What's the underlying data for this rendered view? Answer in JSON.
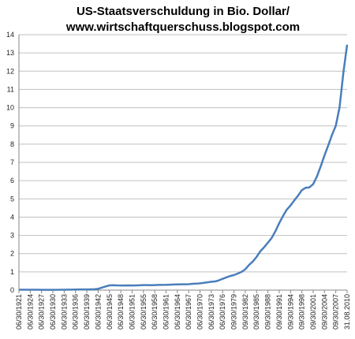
{
  "chart_data": {
    "type": "line",
    "title": [
      "US-Staatsverschuldung in Bio. Dollar/",
      "www.wirtschaftquerschuss.blogspot.com"
    ],
    "categories": [
      "06/30/1921",
      null,
      null,
      "06/30/1924",
      null,
      null,
      "06/30/1927",
      null,
      null,
      "06/30/1930",
      null,
      null,
      "06/30/1933",
      null,
      null,
      "06/30/1936",
      null,
      null,
      "06/30/1939",
      null,
      null,
      "06/30/1942",
      null,
      null,
      "06/30/1945",
      null,
      null,
      "06/30/1948",
      null,
      null,
      "06/30/1951",
      null,
      null,
      "06/30/1955",
      null,
      null,
      "06/30/1958",
      null,
      null,
      "06/30/1961",
      null,
      null,
      "06/30/1964",
      null,
      null,
      "06/30/1967",
      null,
      null,
      "06/30/1970",
      null,
      null,
      "06/30/1973",
      null,
      null,
      "06/30/1976",
      null,
      null,
      "09/30/1979",
      null,
      null,
      "09/30/1982",
      null,
      null,
      "09/30/1985",
      null,
      null,
      "09/30/1988",
      null,
      null,
      "09/30/1991",
      null,
      null,
      "09/30/1994",
      null,
      null,
      "09/30/1998",
      null,
      null,
      "09/30/2001",
      null,
      null,
      "09/30/2004",
      null,
      null,
      "09/30/2007",
      null,
      null,
      "31.08.2010"
    ],
    "series": [
      {
        "color": "#4a7ebb",
        "values": [
          0.024,
          0.023,
          0.022,
          0.021,
          0.02,
          0.019,
          0.018,
          0.018,
          0.017,
          0.016,
          0.017,
          0.019,
          0.023,
          0.027,
          0.029,
          0.034,
          0.036,
          0.037,
          0.04,
          0.043,
          0.049,
          0.072,
          0.137,
          0.201,
          0.259,
          0.269,
          0.258,
          0.252,
          0.253,
          0.257,
          0.255,
          0.259,
          0.266,
          0.274,
          0.273,
          0.271,
          0.276,
          0.285,
          0.286,
          0.289,
          0.298,
          0.306,
          0.312,
          0.317,
          0.32,
          0.326,
          0.348,
          0.354,
          0.371,
          0.398,
          0.427,
          0.458,
          0.475,
          0.533,
          0.62,
          0.699,
          0.772,
          0.827,
          0.908,
          0.998,
          1.14,
          1.38,
          1.57,
          1.82,
          2.13,
          2.35,
          2.6,
          2.86,
          3.23,
          3.67,
          4.06,
          4.41,
          4.64,
          4.92,
          5.18,
          5.48,
          5.61,
          5.63,
          5.81,
          6.23,
          6.78,
          7.38,
          7.93,
          8.51,
          9.01,
          10.02,
          11.9,
          13.45
        ]
      }
    ],
    "ylim": [
      0,
      14
    ],
    "yticks": [
      0,
      1,
      2,
      3,
      4,
      5,
      6,
      7,
      8,
      9,
      10,
      11,
      12,
      13,
      14
    ],
    "grid": true
  }
}
